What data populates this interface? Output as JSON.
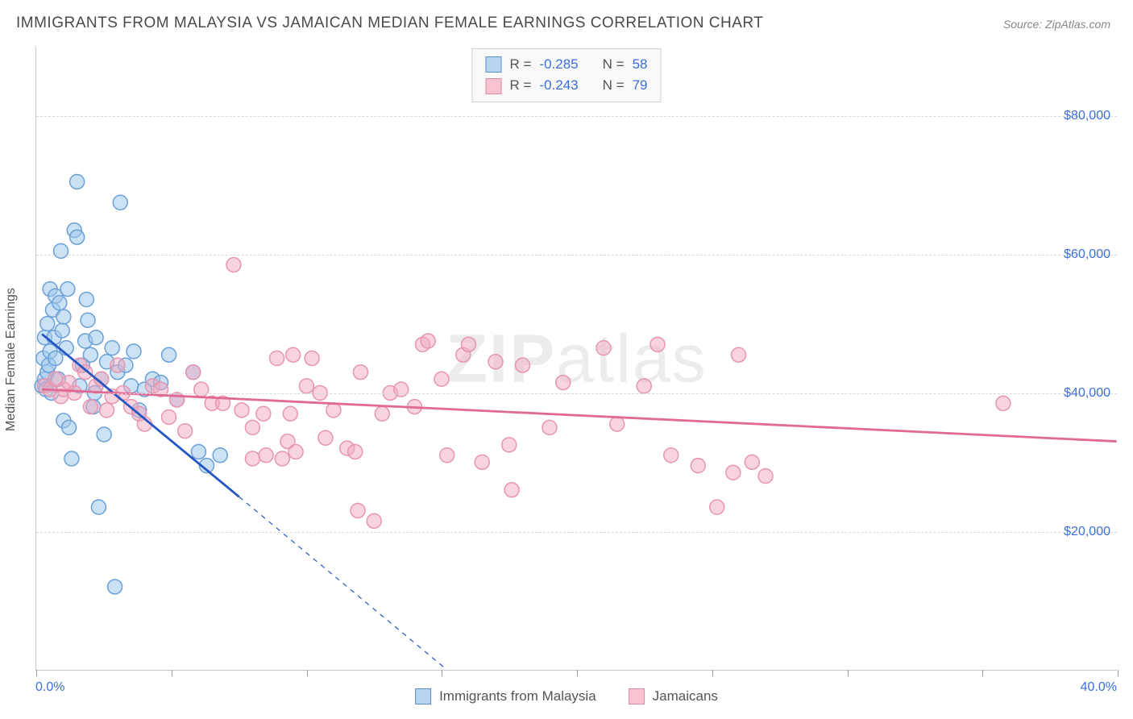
{
  "title": "IMMIGRANTS FROM MALAYSIA VS JAMAICAN MEDIAN FEMALE EARNINGS CORRELATION CHART",
  "source_label": "Source: ",
  "source_name": "ZipAtlas.com",
  "watermark_main": "ZIP",
  "watermark_sub": "atlas",
  "chart": {
    "type": "scatter",
    "background_color": "#ffffff",
    "grid_color": "#d8d8d8",
    "axis_color": "#c8c8c8",
    "text_color": "#555555",
    "value_color": "#3b6fd8",
    "xlim": [
      0,
      40
    ],
    "ylim": [
      0,
      90000
    ],
    "x_ticks": [
      0,
      5,
      10,
      15,
      20,
      25,
      30,
      35,
      40
    ],
    "y_gridlines": [
      20000,
      40000,
      60000,
      80000
    ],
    "y_tick_labels": [
      "$20,000",
      "$40,000",
      "$60,000",
      "$80,000"
    ],
    "x_min_label": "0.0%",
    "x_max_label": "40.0%",
    "y_axis_title": "Median Female Earnings",
    "marker_radius": 9,
    "marker_stroke_width": 1.5,
    "trend_line_width": 2.8,
    "trend_dash_width": 1.2,
    "legend_bottom": [
      {
        "label": "Immigrants from Malaysia",
        "fill": "#b8d4f0",
        "stroke": "#5a8fd0"
      },
      {
        "label": "Jamaicans",
        "fill": "#f5c4d0",
        "stroke": "#e089a4"
      }
    ],
    "stats_box": [
      {
        "swatch_fill": "#b8d4f0",
        "swatch_stroke": "#5a8fd0",
        "r_label": "R = ",
        "r_value": "-0.285",
        "n_label": "N = ",
        "n_value": "58"
      },
      {
        "swatch_fill": "#f5c4d0",
        "swatch_stroke": "#e089a4",
        "r_label": "R = ",
        "r_value": "-0.243",
        "n_label": "N = ",
        "n_value": "79"
      }
    ],
    "series": [
      {
        "name": "Immigrants from Malaysia",
        "marker_fill": "rgba(160,200,235,0.55)",
        "marker_stroke": "#6aa0d8",
        "trend_color": "#2456c4",
        "trend_start": [
          0.2,
          48500
        ],
        "trend_solid_end": [
          7.5,
          25000
        ],
        "trend_dash_end": [
          15.2,
          0
        ],
        "points": [
          [
            0.2,
            41000
          ],
          [
            0.25,
            45000
          ],
          [
            0.3,
            48000
          ],
          [
            0.3,
            42000
          ],
          [
            0.35,
            40500
          ],
          [
            0.4,
            43000
          ],
          [
            0.4,
            50000
          ],
          [
            0.45,
            44000
          ],
          [
            0.5,
            55000
          ],
          [
            0.5,
            46000
          ],
          [
            0.55,
            40000
          ],
          [
            0.6,
            52000
          ],
          [
            0.65,
            48000
          ],
          [
            0.7,
            54000
          ],
          [
            0.7,
            45000
          ],
          [
            0.8,
            42000
          ],
          [
            0.85,
            53000
          ],
          [
            0.9,
            60500
          ],
          [
            0.95,
            49000
          ],
          [
            1.0,
            51000
          ],
          [
            1.0,
            36000
          ],
          [
            1.1,
            46500
          ],
          [
            1.15,
            55000
          ],
          [
            1.2,
            35000
          ],
          [
            1.3,
            30500
          ],
          [
            1.4,
            63500
          ],
          [
            1.5,
            62500
          ],
          [
            1.5,
            70500
          ],
          [
            1.6,
            41000
          ],
          [
            1.7,
            44000
          ],
          [
            1.8,
            47500
          ],
          [
            1.85,
            53500
          ],
          [
            1.9,
            50500
          ],
          [
            2.0,
            45500
          ],
          [
            2.1,
            38000
          ],
          [
            2.15,
            40000
          ],
          [
            2.2,
            48000
          ],
          [
            2.3,
            23500
          ],
          [
            2.4,
            42000
          ],
          [
            2.5,
            34000
          ],
          [
            2.6,
            44500
          ],
          [
            2.8,
            46500
          ],
          [
            2.9,
            12000
          ],
          [
            3.0,
            43000
          ],
          [
            3.1,
            67500
          ],
          [
            3.3,
            44000
          ],
          [
            3.5,
            41000
          ],
          [
            3.6,
            46000
          ],
          [
            3.8,
            37500
          ],
          [
            4.0,
            40500
          ],
          [
            4.3,
            42000
          ],
          [
            4.6,
            41500
          ],
          [
            4.9,
            45500
          ],
          [
            5.2,
            39000
          ],
          [
            5.8,
            43000
          ],
          [
            6.0,
            31500
          ],
          [
            6.3,
            29500
          ],
          [
            6.8,
            31000
          ]
        ]
      },
      {
        "name": "Jamaicans",
        "marker_fill": "rgba(240,170,190,0.5)",
        "marker_stroke": "#e895b0",
        "trend_color": "#e06a95",
        "trend_start": [
          0.2,
          40500
        ],
        "trend_solid_end": [
          40,
          33000
        ],
        "trend_dash_end": null,
        "points": [
          [
            0.3,
            41000
          ],
          [
            0.5,
            40500
          ],
          [
            0.7,
            42000
          ],
          [
            0.9,
            39500
          ],
          [
            1.0,
            40500
          ],
          [
            1.2,
            41500
          ],
          [
            1.4,
            40000
          ],
          [
            1.6,
            44000
          ],
          [
            1.8,
            43000
          ],
          [
            2.0,
            38000
          ],
          [
            2.2,
            41000
          ],
          [
            2.4,
            42000
          ],
          [
            2.6,
            37500
          ],
          [
            2.8,
            39500
          ],
          [
            3.0,
            44000
          ],
          [
            3.2,
            40000
          ],
          [
            3.5,
            38000
          ],
          [
            3.8,
            37000
          ],
          [
            4.0,
            35500
          ],
          [
            4.3,
            41000
          ],
          [
            4.6,
            40500
          ],
          [
            4.9,
            36500
          ],
          [
            5.2,
            39000
          ],
          [
            5.5,
            34500
          ],
          [
            5.8,
            43000
          ],
          [
            6.1,
            40500
          ],
          [
            6.5,
            38500
          ],
          [
            6.9,
            38500
          ],
          [
            7.3,
            58500
          ],
          [
            7.6,
            37500
          ],
          [
            8.0,
            35000
          ],
          [
            8.0,
            30500
          ],
          [
            8.4,
            37000
          ],
          [
            8.5,
            31000
          ],
          [
            8.9,
            45000
          ],
          [
            9.1,
            30500
          ],
          [
            9.3,
            33000
          ],
          [
            9.4,
            37000
          ],
          [
            9.5,
            45500
          ],
          [
            9.6,
            31500
          ],
          [
            10.0,
            41000
          ],
          [
            10.2,
            45000
          ],
          [
            10.5,
            40000
          ],
          [
            10.7,
            33500
          ],
          [
            11.0,
            37500
          ],
          [
            11.5,
            32000
          ],
          [
            11.8,
            31500
          ],
          [
            11.9,
            23000
          ],
          [
            12.0,
            43000
          ],
          [
            12.5,
            21500
          ],
          [
            12.8,
            37000
          ],
          [
            13.1,
            40000
          ],
          [
            13.5,
            40500
          ],
          [
            14.0,
            38000
          ],
          [
            14.3,
            47000
          ],
          [
            14.5,
            47500
          ],
          [
            15.0,
            42000
          ],
          [
            15.2,
            31000
          ],
          [
            15.8,
            45500
          ],
          [
            16.0,
            47000
          ],
          [
            16.5,
            30000
          ],
          [
            17.0,
            44500
          ],
          [
            17.5,
            32500
          ],
          [
            17.6,
            26000
          ],
          [
            18.0,
            44000
          ],
          [
            19.0,
            35000
          ],
          [
            19.5,
            41500
          ],
          [
            21.0,
            46500
          ],
          [
            21.5,
            35500
          ],
          [
            22.5,
            41000
          ],
          [
            23.0,
            47000
          ],
          [
            23.5,
            31000
          ],
          [
            24.5,
            29500
          ],
          [
            25.2,
            23500
          ],
          [
            25.8,
            28500
          ],
          [
            26.0,
            45500
          ],
          [
            26.5,
            30000
          ],
          [
            27.0,
            28000
          ],
          [
            35.8,
            38500
          ]
        ]
      }
    ]
  }
}
